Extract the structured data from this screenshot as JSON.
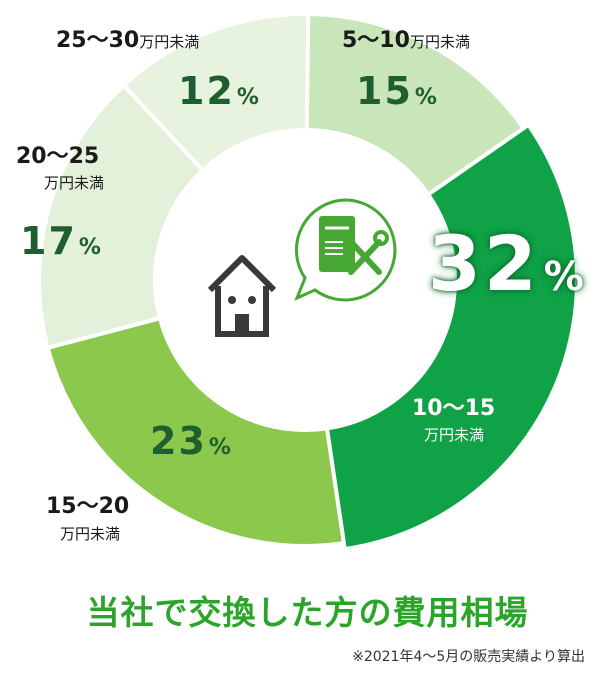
{
  "chart_data": {
    "type": "pie",
    "subtype": "donut",
    "title": "当社で交換した方の費用相場",
    "note": "※2021年4〜5月の販売実績より算出",
    "unit_label": "万円未満",
    "slices": [
      {
        "range": "5〜10",
        "unit": "万円未満",
        "value": 15,
        "display": "15",
        "color": "#c8e6b9"
      },
      {
        "range": "10〜15",
        "unit": "万円未満",
        "value": 32,
        "display": "32",
        "color": "#0fa247"
      },
      {
        "range": "15〜20",
        "unit": "万円未満",
        "value": 23,
        "display": "23",
        "color": "#8cc84b"
      },
      {
        "range": "20〜25",
        "unit": "万円未満",
        "value": 17,
        "display": "17",
        "color": "#e3f1db"
      },
      {
        "range": "25〜30",
        "unit": "万円未満",
        "value": 12,
        "display": "12",
        "color": "#e7f2df"
      }
    ],
    "percent_sign": "%"
  },
  "icons": {
    "center_left": "house-icon",
    "center_right": "water-heater-repair-icon"
  },
  "colors": {
    "headline": "#2aa52a",
    "pct_dark": "#1f5e2e",
    "icon_green": "#46a832"
  }
}
